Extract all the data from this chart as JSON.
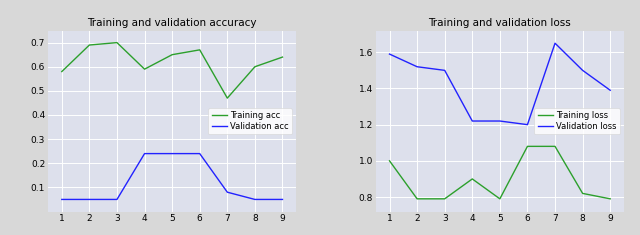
{
  "acc_title": "Training and validation accuracy",
  "loss_title": "Training and validation loss",
  "epochs": [
    1,
    2,
    3,
    4,
    5,
    6,
    7,
    8,
    9
  ],
  "train_acc": [
    0.58,
    0.69,
    0.7,
    0.59,
    0.65,
    0.67,
    0.47,
    0.6,
    0.64
  ],
  "val_acc": [
    0.05,
    0.05,
    0.05,
    0.24,
    0.24,
    0.24,
    0.08,
    0.05,
    0.05
  ],
  "train_loss": [
    1.0,
    0.79,
    0.79,
    0.9,
    0.79,
    1.08,
    1.08,
    0.82,
    0.79
  ],
  "val_loss": [
    1.59,
    1.52,
    1.5,
    1.22,
    1.22,
    1.2,
    1.65,
    1.5,
    1.39
  ],
  "train_acc_color": "#2ca02c",
  "val_acc_color": "#2222ff",
  "train_loss_color": "#2ca02c",
  "val_loss_color": "#2222ff",
  "acc_legend_labels": [
    "Training acc",
    "Validation acc"
  ],
  "loss_legend_labels": [
    "Training loss",
    "Validation loss"
  ],
  "plot_bg_color": "#dde0ec",
  "fig_bg": "#d8d8d8",
  "ylim_acc": [
    0.0,
    0.75
  ],
  "ylim_loss": [
    0.72,
    1.72
  ],
  "acc_yticks": [
    0.1,
    0.2,
    0.3,
    0.4,
    0.5,
    0.6,
    0.7
  ],
  "loss_yticks": [
    0.8,
    1.0,
    1.2,
    1.4,
    1.6
  ],
  "title_fontsize": 7.5,
  "tick_fontsize": 6.5,
  "legend_fontsize": 6.0
}
